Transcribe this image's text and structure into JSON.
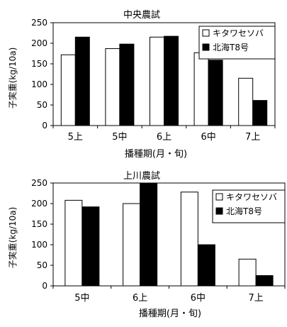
{
  "chart_data": [
    {
      "type": "bar",
      "title": "中央農試",
      "xlabel": "播種期(月・旬)",
      "ylabel": "子実重(kg/10a)",
      "categories": [
        "5上",
        "5中",
        "6上",
        "6中",
        "7上"
      ],
      "ylim": [
        0,
        250
      ],
      "yticks": [
        0,
        50,
        100,
        150,
        200,
        250
      ],
      "grid": false,
      "legend_position": "top-right",
      "series": [
        {
          "name": "キタワセソバ",
          "values": [
            172,
            187,
            215,
            177,
            115
          ],
          "fill": "#ffffff"
        },
        {
          "name": "北海T8号",
          "values": [
            215,
            198,
            217,
            159,
            61
          ],
          "fill": "#000000"
        }
      ]
    },
    {
      "type": "bar",
      "title": "上川農試",
      "xlabel": "播種期(月・旬)",
      "ylabel": "子実重(kg/10a)",
      "categories": [
        "5中",
        "6上",
        "6中",
        "7上"
      ],
      "ylim": [
        0,
        250
      ],
      "yticks": [
        0,
        50,
        100,
        150,
        200,
        250
      ],
      "grid": false,
      "legend_position": "top-right",
      "series": [
        {
          "name": "キタワセソバ",
          "values": [
            208,
            200,
            228,
            65
          ],
          "fill": "#ffffff"
        },
        {
          "name": "北海T8号",
          "values": [
            192,
            260,
            100,
            25
          ],
          "fill": "#000000"
        }
      ]
    }
  ]
}
